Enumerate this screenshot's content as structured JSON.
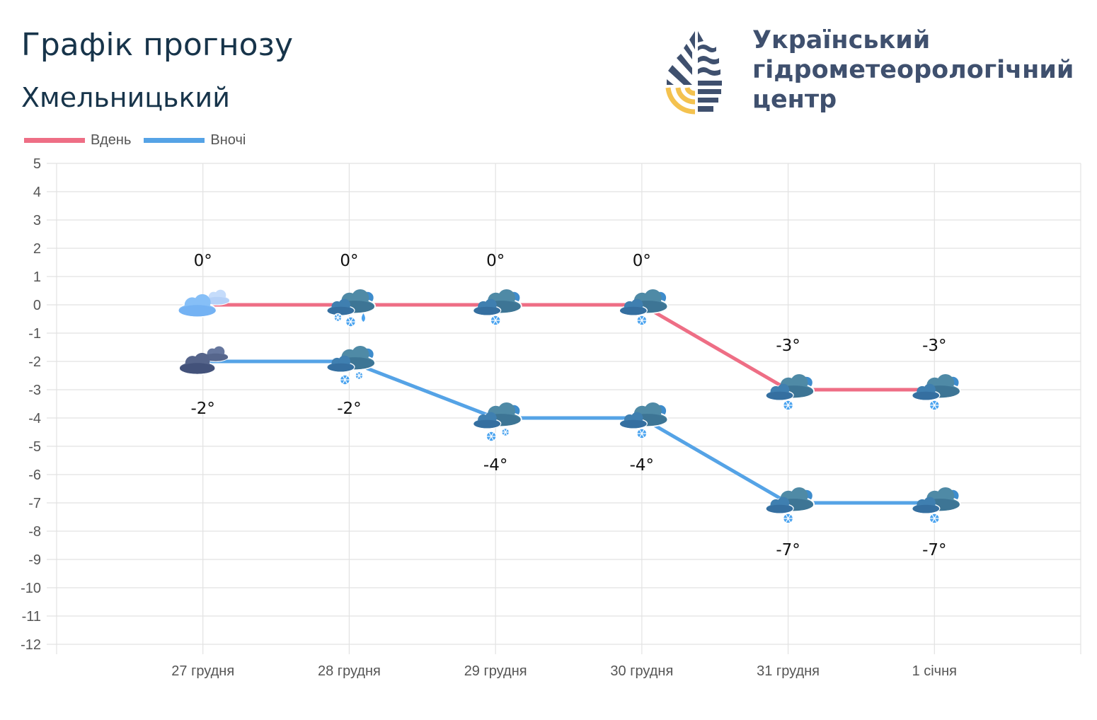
{
  "header": {
    "title": "Графік прогнозу",
    "city": "Хмельницький",
    "org_lines": [
      "Український",
      "гідрометеорологічний",
      "центр"
    ]
  },
  "chart_data": {
    "type": "line",
    "categories": [
      "27 грудня",
      "28 грудня",
      "29 грудня",
      "30 грудня",
      "31 грудня",
      "1 січня"
    ],
    "ylim": [
      -12,
      5
    ],
    "yticks": [
      5,
      4,
      3,
      2,
      1,
      0,
      -1,
      -2,
      -3,
      -4,
      -5,
      -6,
      -7,
      -8,
      -9,
      -10,
      -11,
      -12
    ],
    "grid": true,
    "legend_position": "top-left",
    "series": [
      {
        "name": "Вдень",
        "color": "#ee6e85",
        "values": [
          0,
          0,
          0,
          0,
          -3,
          -3
        ],
        "labels": [
          "0°",
          "0°",
          "0°",
          "0°",
          "-3°",
          "-3°"
        ],
        "icons": [
          "partly-cloudy",
          "cloudy-snow-rain",
          "cloudy-snow",
          "cloudy-snow",
          "cloudy-snow",
          "cloudy-snow"
        ]
      },
      {
        "name": "Вночі",
        "color": "#55a3e6",
        "values": [
          -2,
          -2,
          -4,
          -4,
          -7,
          -7
        ],
        "labels": [
          "-2°",
          "-2°",
          "-4°",
          "-4°",
          "-7°",
          "-7°"
        ],
        "icons": [
          "cloudy-night",
          "cloudy-snow-heavy",
          "cloudy-snow-heavy",
          "cloudy-snow",
          "cloudy-snow",
          "cloudy-snow"
        ]
      }
    ]
  }
}
